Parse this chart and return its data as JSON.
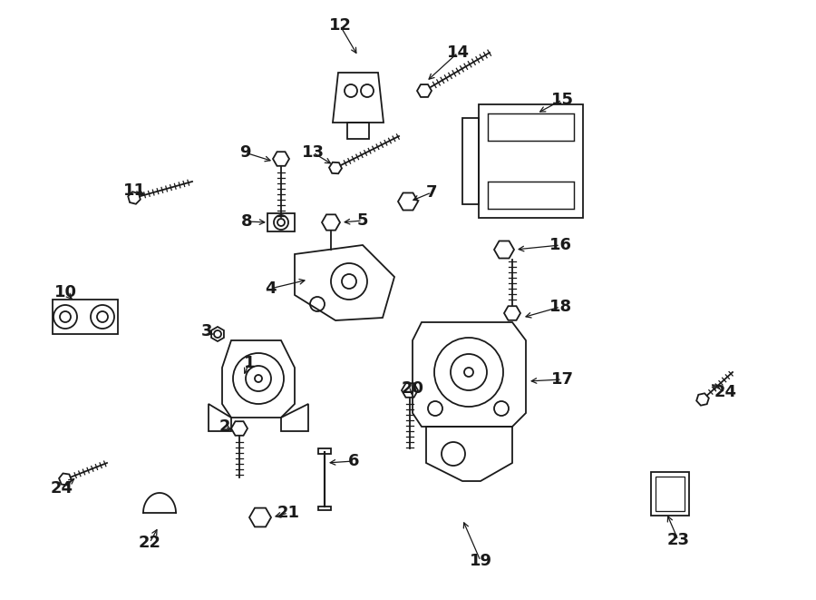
{
  "bg_color": "#ffffff",
  "line_color": "#1a1a1a",
  "label_color": "#1a1a1a",
  "fig_width": 9.0,
  "fig_height": 6.61,
  "dpi": 100
}
